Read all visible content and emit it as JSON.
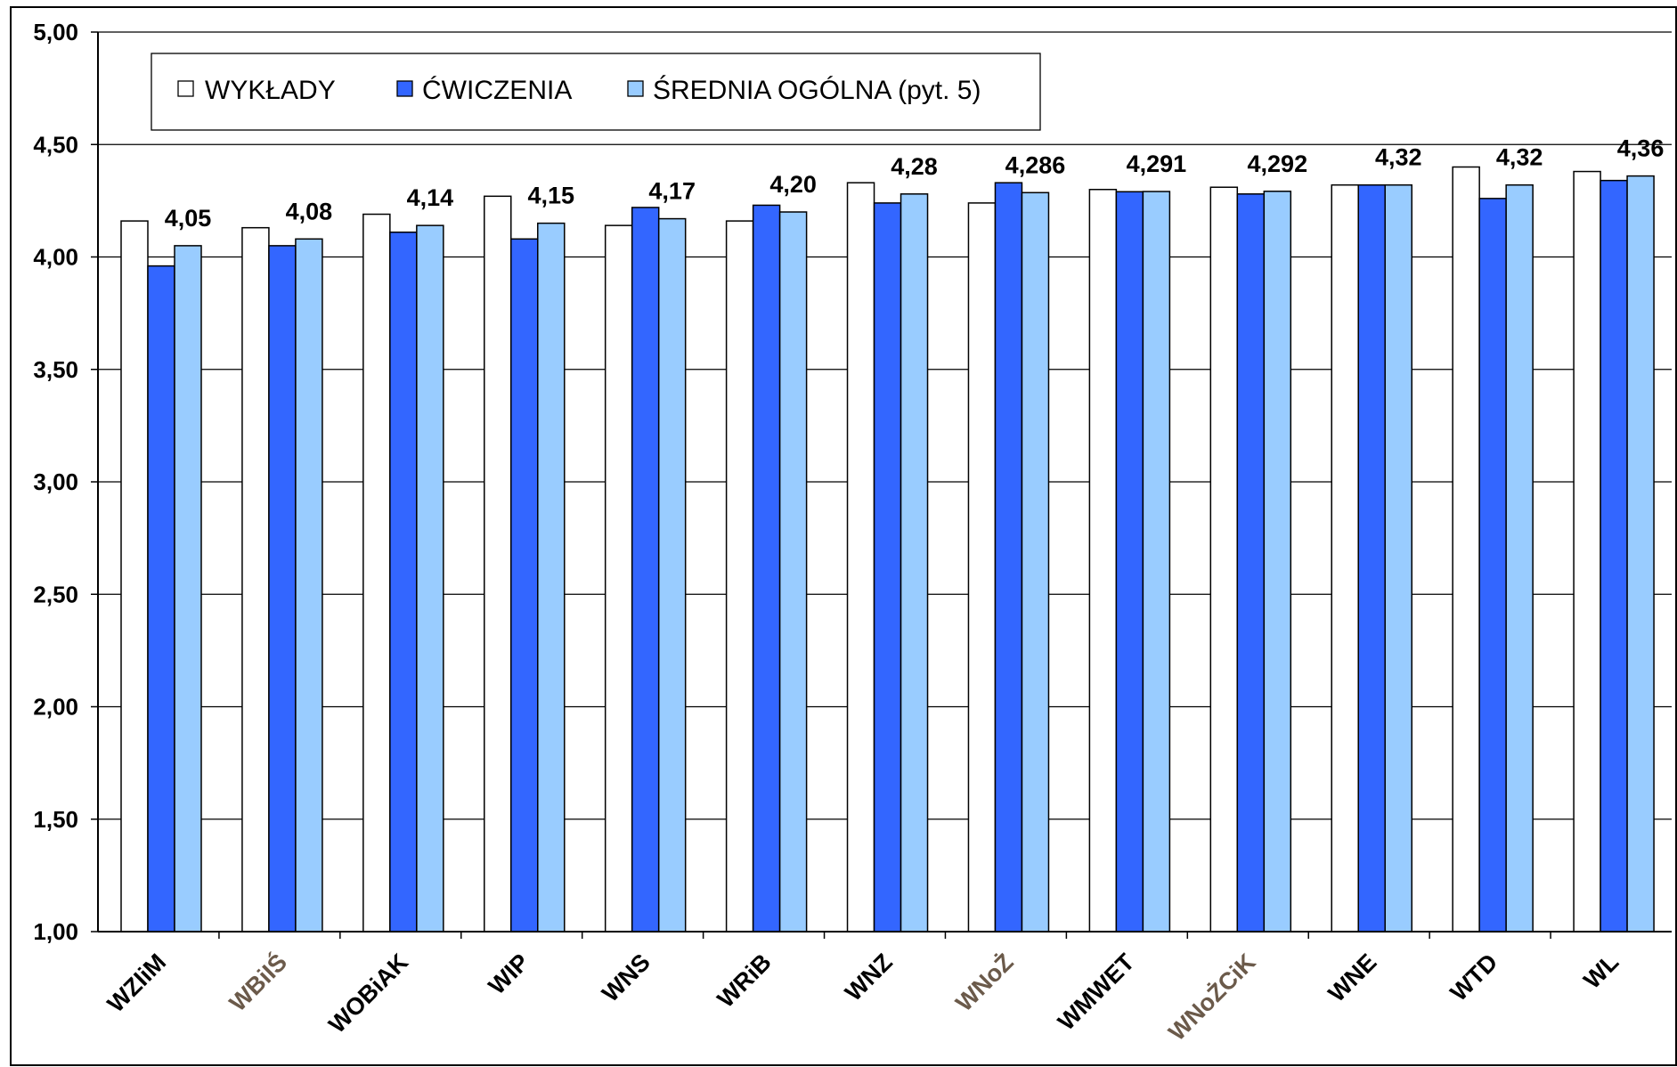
{
  "chart_data": {
    "type": "bar",
    "title": "",
    "xlabel": "",
    "ylabel": "",
    "ylim": [
      1.0,
      5.0
    ],
    "yticks": [
      "1,00",
      "1,50",
      "2,00",
      "2,50",
      "3,00",
      "3,50",
      "4,00",
      "4,50",
      "5,00"
    ],
    "grid": true,
    "legend_position": "top-left",
    "categories": [
      "WZIiM",
      "WBiIŚ",
      "WOBiAK",
      "WIP",
      "WNS",
      "WRiB",
      "WNZ",
      "WNoŻ",
      "WMWET",
      "WNoŻCiK",
      "WNE",
      "WTD",
      "WL"
    ],
    "highlighted_categories": [
      "WBiIŚ",
      "WNoŻ",
      "WNoŻCiK"
    ],
    "series": [
      {
        "name": "WYKŁADY",
        "color": "#ffffff",
        "values": [
          4.16,
          4.13,
          4.19,
          4.27,
          4.14,
          4.16,
          4.33,
          4.24,
          4.3,
          4.31,
          4.32,
          4.4,
          4.38
        ]
      },
      {
        "name": "ĆWICZENIA",
        "color": "#3366ff",
        "values": [
          3.96,
          4.05,
          4.11,
          4.08,
          4.22,
          4.23,
          4.24,
          4.33,
          4.29,
          4.28,
          4.32,
          4.26,
          4.34
        ]
      },
      {
        "name": "ŚREDNIA OGÓLNA (pyt. 5)",
        "color": "#99ccff",
        "values": [
          4.05,
          4.08,
          4.14,
          4.15,
          4.17,
          4.2,
          4.28,
          4.286,
          4.291,
          4.292,
          4.32,
          4.32,
          4.36
        ]
      }
    ],
    "data_labels": [
      "4,05",
      "4,08",
      "4,14",
      "4,15",
      "4,17",
      "4,20",
      "4,28",
      "4,286",
      "4,291",
      "4,292",
      "4,32",
      "4,32",
      "4,36"
    ]
  }
}
